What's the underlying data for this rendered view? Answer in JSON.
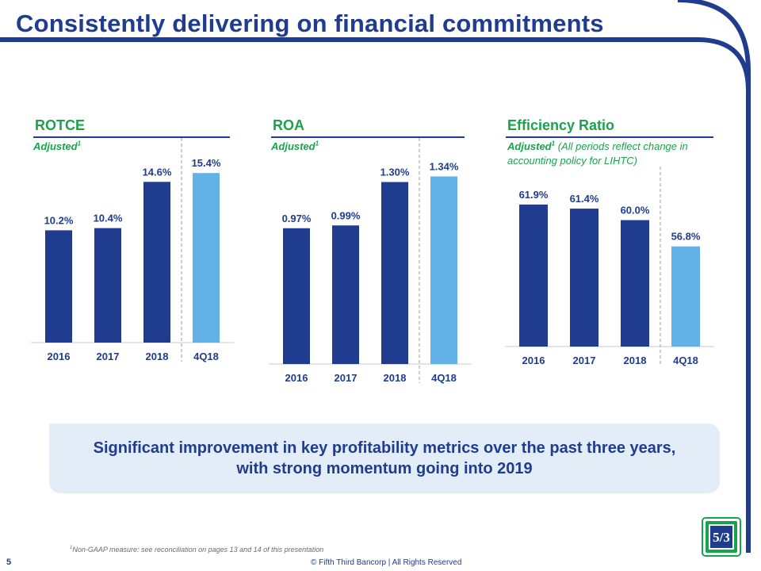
{
  "title": "Consistently delivering on financial commitments",
  "colors": {
    "navy": "#1F3C8F",
    "light_blue": "#62B2E8",
    "green": "#1BA24C",
    "callout_bg": "#E2EDF8"
  },
  "chart_data": [
    {
      "type": "bar",
      "title": "ROTCE",
      "subtitle_label": "Adjusted",
      "subtitle_sup": "1",
      "subtitle_note": "",
      "categories": [
        "2016",
        "2017",
        "2018",
        "4Q18"
      ],
      "values": [
        10.2,
        10.4,
        14.6,
        15.4
      ],
      "data_labels": [
        "10.2%",
        "10.4%",
        "14.6%",
        "15.4%"
      ],
      "ylim": [
        0,
        17
      ],
      "highlight_last": true
    },
    {
      "type": "bar",
      "title": "ROA",
      "subtitle_label": "Adjusted",
      "subtitle_sup": "1",
      "subtitle_note": "",
      "categories": [
        "2016",
        "2017",
        "2018",
        "4Q18"
      ],
      "values": [
        0.97,
        0.99,
        1.3,
        1.34
      ],
      "data_labels": [
        "0.97%",
        "0.99%",
        "1.30%",
        "1.34%"
      ],
      "ylim": [
        0,
        1.49
      ],
      "highlight_last": true
    },
    {
      "type": "bar",
      "title": "Efficiency Ratio",
      "subtitle_label": "Adjusted",
      "subtitle_sup": "1",
      "subtitle_note": "(All periods reflect change in accounting policy for LIHTC)",
      "categories": [
        "2016",
        "2017",
        "2018",
        "4Q18"
      ],
      "values": [
        61.9,
        61.4,
        60.0,
        56.8
      ],
      "data_labels": [
        "61.9%",
        "61.4%",
        "60.0%",
        "56.8%"
      ],
      "ylim": [
        44.6,
        64.4
      ],
      "highlight_last": true
    }
  ],
  "callout": "Significant improvement in key profitability metrics over the past three years, with strong momentum going into 2019",
  "footnote": {
    "sup": "1",
    "text": "Non-GAAP measure: see reconciliation on pages 13 and 14 of this presentation"
  },
  "page_number": "5",
  "copyright": "© Fifth Third Bancorp | All Rights Reserved",
  "logo": {
    "glyph": "5/3",
    "icon": "fifth-third-logo-icon"
  }
}
